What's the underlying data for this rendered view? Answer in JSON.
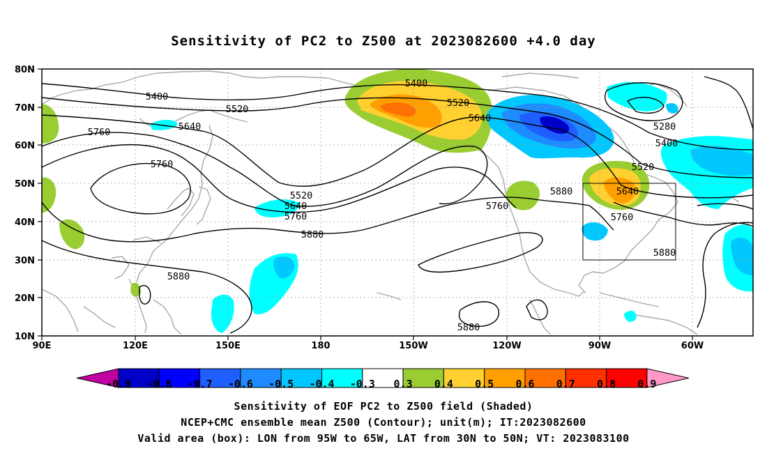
{
  "title": "Sensitivity of PC2 to Z500 at 2023082600 +4.0 day",
  "map": {
    "lat_ticks": [
      "80N",
      "70N",
      "60N",
      "50N",
      "40N",
      "30N",
      "20N",
      "10N"
    ],
    "lon_ticks": [
      "90E",
      "120E",
      "150E",
      "180",
      "150W",
      "120W",
      "90W",
      "60W"
    ],
    "contour_labels": [
      "5400",
      "5520",
      "5640",
      "5760",
      "5760",
      "5400",
      "5520",
      "5640",
      "5280",
      "5400",
      "5520",
      "5640",
      "5760",
      "5880",
      "5520",
      "5640",
      "5760",
      "5760",
      "5880",
      "5880",
      "5880",
      "5880"
    ],
    "box": {
      "lon_from": "95W",
      "lon_to": "65W",
      "lat_from": "30N",
      "lat_to": "50N"
    }
  },
  "colorbar": {
    "labels": [
      "-0.9",
      "-0.8",
      "-0.7",
      "-0.6",
      "-0.5",
      "-0.4",
      "-0.3",
      "0.3",
      "0.4",
      "0.5",
      "0.6",
      "0.7",
      "0.8",
      "0.9"
    ],
    "colors": [
      "#c000a0",
      "#0000c8",
      "#0000ff",
      "#1f5fff",
      "#1e8cff",
      "#00c8ff",
      "#00ffff",
      "#ffffff",
      "#9acd32",
      "#ffd030",
      "#ffa000",
      "#ff7000",
      "#ff3000",
      "#ff0000",
      "#ff9ac8"
    ]
  },
  "captions": {
    "line1": "Sensitivity of EOF PC2 to Z500 field (Shaded)",
    "line2": "NCEP+CMC ensemble mean Z500 (Contour); unit(m); IT:2023082600",
    "line3": "Valid area (box): LON from 95W to 65W, LAT from 30N to 50N; VT: 2023083100"
  }
}
